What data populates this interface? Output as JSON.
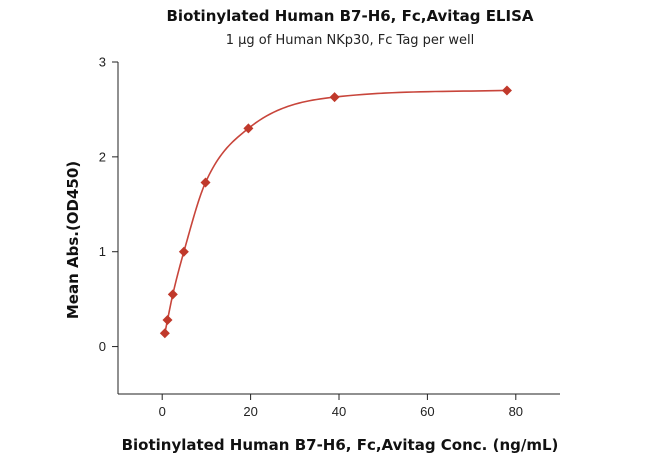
{
  "chart_data": {
    "type": "scatter",
    "title": "Biotinylated Human B7-H6, Fc,Avitag ELISA",
    "subtitle": "1 µg of Human NKp30, Fc Tag per well",
    "xlabel": "Biotinylated Human B7-H6, Fc,Avitag Conc. (ng/mL)",
    "ylabel": "Mean Abs.(OD450)",
    "xlim": [
      -10,
      90
    ],
    "ylim": [
      -0.5,
      3
    ],
    "x_ticks": [
      0,
      20,
      40,
      60,
      80
    ],
    "y_ticks": [
      0,
      1,
      2,
      3
    ],
    "grid": false,
    "legend": "none",
    "series": [
      {
        "x": [
          0.6,
          1.2,
          2.4,
          4.9,
          9.8,
          19.5,
          39,
          78
        ],
        "y": [
          0.14,
          0.28,
          0.55,
          1.0,
          1.73,
          2.3,
          2.63,
          2.7
        ],
        "marker_color": "#c0392b",
        "fit_color": "#c8453b"
      }
    ]
  }
}
